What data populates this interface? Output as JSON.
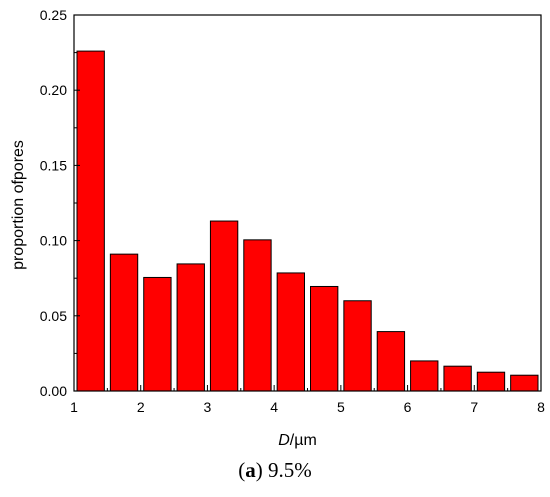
{
  "chart_data": {
    "type": "bar",
    "x": [
      1.25,
      1.75,
      2.25,
      2.75,
      3.25,
      3.75,
      4.25,
      4.75,
      5.25,
      5.75,
      6.25,
      6.75,
      7.25,
      7.75
    ],
    "values": [
      0.226,
      0.091,
      0.0755,
      0.0845,
      0.113,
      0.1005,
      0.0785,
      0.0695,
      0.06,
      0.0395,
      0.02,
      0.0165,
      0.0125,
      0.0105
    ],
    "bar_width": 0.5,
    "bar_color": "#ff0000",
    "bar_edge_color": "#000000",
    "xlim": [
      1,
      8
    ],
    "ylim": [
      0,
      0.25
    ],
    "xticks": [
      1,
      2,
      3,
      4,
      5,
      6,
      7,
      8
    ],
    "xtick_labels": [
      "1",
      "2",
      "3",
      "4",
      "5",
      "6",
      "7",
      "8"
    ],
    "yticks": [
      0,
      0.05,
      0.1,
      0.15,
      0.2,
      0.25
    ],
    "ytick_labels": [
      "0.00",
      "0.05",
      "0.10",
      "0.15",
      "0.20",
      "0.25"
    ],
    "xlabel_italic": "D",
    "xlabel_rest": "/µm",
    "ylabel": "proportion ofpores",
    "grid": false
  },
  "caption": {
    "label": "a",
    "text": "9.5%"
  }
}
